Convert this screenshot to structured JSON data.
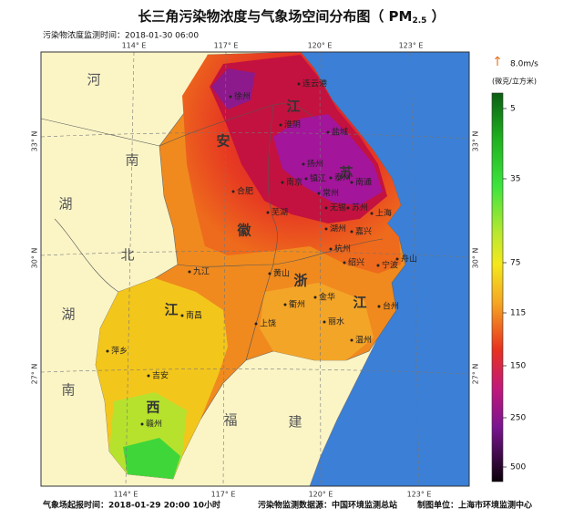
{
  "title": {
    "main": "长三角污染物浓度与气象场空间分布图（ PM",
    "sub": "2.5",
    "close": " ）"
  },
  "monitor_time": "污染物浓度监测时间：2018-01-30 06:00",
  "axes": {
    "top": [
      "114° E",
      "117° E",
      "120° E",
      "123° E"
    ],
    "bottom": [
      "114° E",
      "117° E",
      "120° E",
      "123° E"
    ],
    "left": [
      "33° N",
      "30° N",
      "27° N"
    ],
    "right": [
      "33° N",
      "30° N",
      "27° N"
    ]
  },
  "legend": {
    "wind": "8.0m/s",
    "unit": "(微克/立方米)",
    "ticks": [
      5,
      35,
      75,
      115,
      150,
      250,
      500
    ]
  },
  "provinces": [
    "河",
    "南",
    "湖",
    "北",
    "湖",
    "南",
    "安",
    "徽",
    "江",
    "苏",
    "浙",
    "江",
    "江",
    "西",
    "福",
    "建"
  ],
  "cities": [
    "徐州",
    "连云港",
    "淮阴",
    "盐城",
    "扬州",
    "泰州",
    "南京",
    "镇江",
    "常州",
    "南通",
    "合肥",
    "无锡",
    "苏州",
    "芜湖",
    "上海",
    "湖州",
    "嘉兴",
    "杭州",
    "绍兴",
    "宁波",
    "舟山",
    "九江",
    "黄山",
    "衢州",
    "金华",
    "台州",
    "南昌",
    "上饶",
    "丽水",
    "温州",
    "萍乡",
    "吉安",
    "赣州"
  ],
  "footer": {
    "forecast_time": "气象场起报时间：2018-01-29 20:00 10小时",
    "source": "污染物监测数据源：中国环境监测总站",
    "producer": "制图单位：上海市环境监测中心"
  }
}
